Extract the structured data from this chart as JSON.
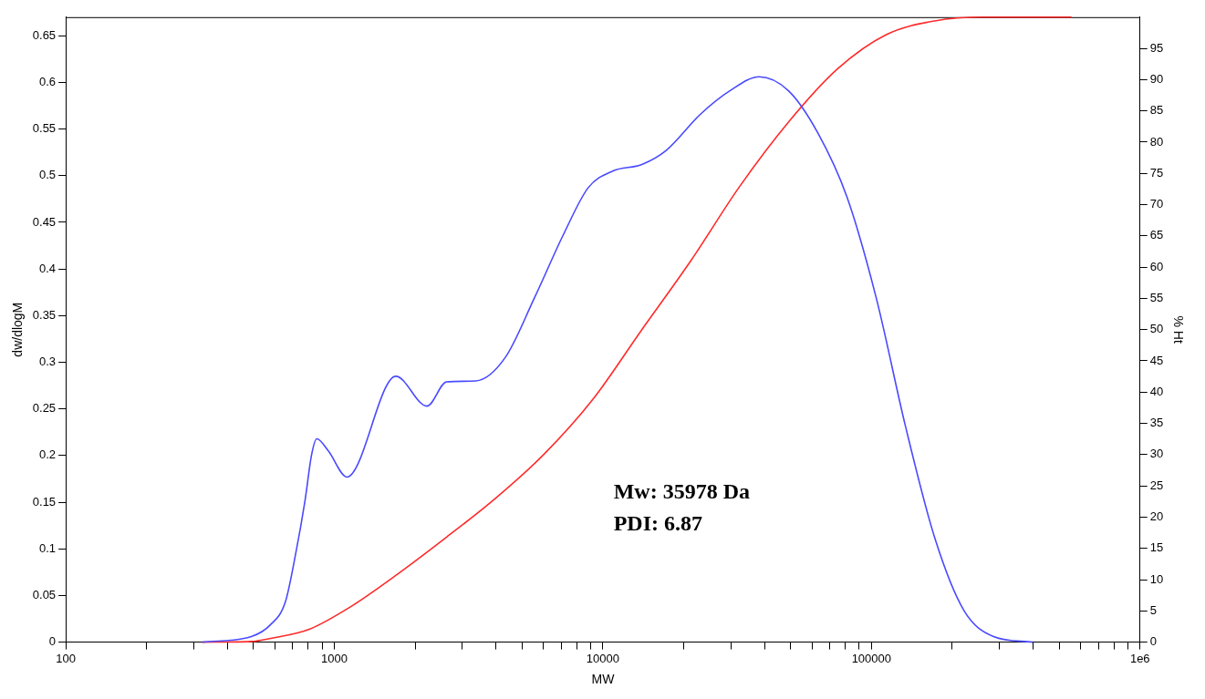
{
  "chart_data": {
    "type": "line",
    "xlabel": "MW",
    "ylabel": "dw/dlogM",
    "y2label": "% Ht",
    "log": "x",
    "grid": false,
    "legend": false,
    "marker": "none",
    "line_style": "solid",
    "xlim": [
      100,
      1000000
    ],
    "xticks": [
      100,
      {
        "value": 200,
        "label": null
      },
      {
        "value": 300,
        "label": null
      },
      {
        "value": 400,
        "label": null
      },
      {
        "value": 500,
        "label": null
      },
      {
        "value": 600,
        "label": null
      },
      {
        "value": 700,
        "label": null
      },
      {
        "value": 800,
        "label": null
      },
      {
        "value": 900,
        "label": null
      },
      1000,
      {
        "value": 2000,
        "label": null
      },
      {
        "value": 3000,
        "label": null
      },
      {
        "value": 4000,
        "label": null
      },
      {
        "value": 5000,
        "label": null
      },
      {
        "value": 6000,
        "label": null
      },
      {
        "value": 7000,
        "label": null
      },
      {
        "value": 8000,
        "label": null
      },
      {
        "value": 9000,
        "label": null
      },
      10000,
      {
        "value": 20000,
        "label": null
      },
      {
        "value": 30000,
        "label": null
      },
      {
        "value": 40000,
        "label": null
      },
      {
        "value": 50000,
        "label": null
      },
      {
        "value": 60000,
        "label": null
      },
      {
        "value": 70000,
        "label": null
      },
      {
        "value": 80000,
        "label": null
      },
      {
        "value": 90000,
        "label": null
      },
      100000,
      {
        "value": 200000,
        "label": null
      },
      {
        "value": 300000,
        "label": null
      },
      {
        "value": 400000,
        "label": null
      },
      {
        "value": 500000,
        "label": null
      },
      {
        "value": 600000,
        "label": null
      },
      {
        "value": 700000,
        "label": null
      },
      {
        "value": 800000,
        "label": null
      },
      {
        "value": 900000,
        "label": null
      },
      {
        "value": 1000000,
        "label": "1e6"
      }
    ],
    "ylim": [
      0,
      0.67
    ],
    "yticks": [
      0,
      0.05,
      0.1,
      0.15,
      0.2,
      0.25,
      0.3,
      0.35,
      0.4,
      0.45,
      0.5,
      0.55,
      0.6,
      0.65
    ],
    "y2lim": [
      0,
      100
    ],
    "y2ticks": [
      0,
      5,
      10,
      15,
      20,
      25,
      30,
      35,
      40,
      45,
      50,
      55,
      60,
      65,
      70,
      75,
      80,
      85,
      90,
      95
    ],
    "annotations": [
      "Mw: 35978 Da",
      "PDI: 6.87"
    ],
    "series": [
      {
        "type": "line",
        "color": "#4a4aff",
        "x": [
          323,
          491,
          580,
          657,
          716,
          778,
          823,
          860,
          950,
          1114,
          1694,
          2213,
          2618,
          3361,
          4327,
          5560,
          7160,
          8810,
          10870,
          13970,
          17200,
          23100,
          29700,
          38200,
          49100,
          63100,
          81100,
          104200,
          134000,
          172000,
          221000,
          285000,
          398000
        ],
        "values": [
          0,
          0.006,
          0.019,
          0.043,
          0.093,
          0.152,
          0.201,
          0.218,
          0.205,
          0.177,
          0.285,
          0.253,
          0.279,
          0.28,
          0.305,
          0.369,
          0.438,
          0.487,
          0.505,
          0.512,
          0.527,
          0.566,
          0.591,
          0.606,
          0.591,
          0.546,
          0.477,
          0.369,
          0.231,
          0.112,
          0.034,
          0.006,
          0
        ]
      },
      {
        "type": "line",
        "color": "#ff2a2a",
        "axis": "y2",
        "x": [
          323,
          491,
          580,
          811,
          1134,
          1722,
          2618,
          3980,
          6050,
          9200,
          13970,
          21240,
          32300,
          49100,
          74700,
          113600,
          172000,
          261000,
          556000
        ],
        "values": [
          0,
          0.1,
          0.6,
          2.1,
          5.5,
          10.9,
          16.8,
          23,
          30.1,
          38.9,
          50,
          61,
          72.9,
          83.2,
          91.7,
          97.2,
          99.4,
          100,
          100
        ]
      }
    ]
  }
}
